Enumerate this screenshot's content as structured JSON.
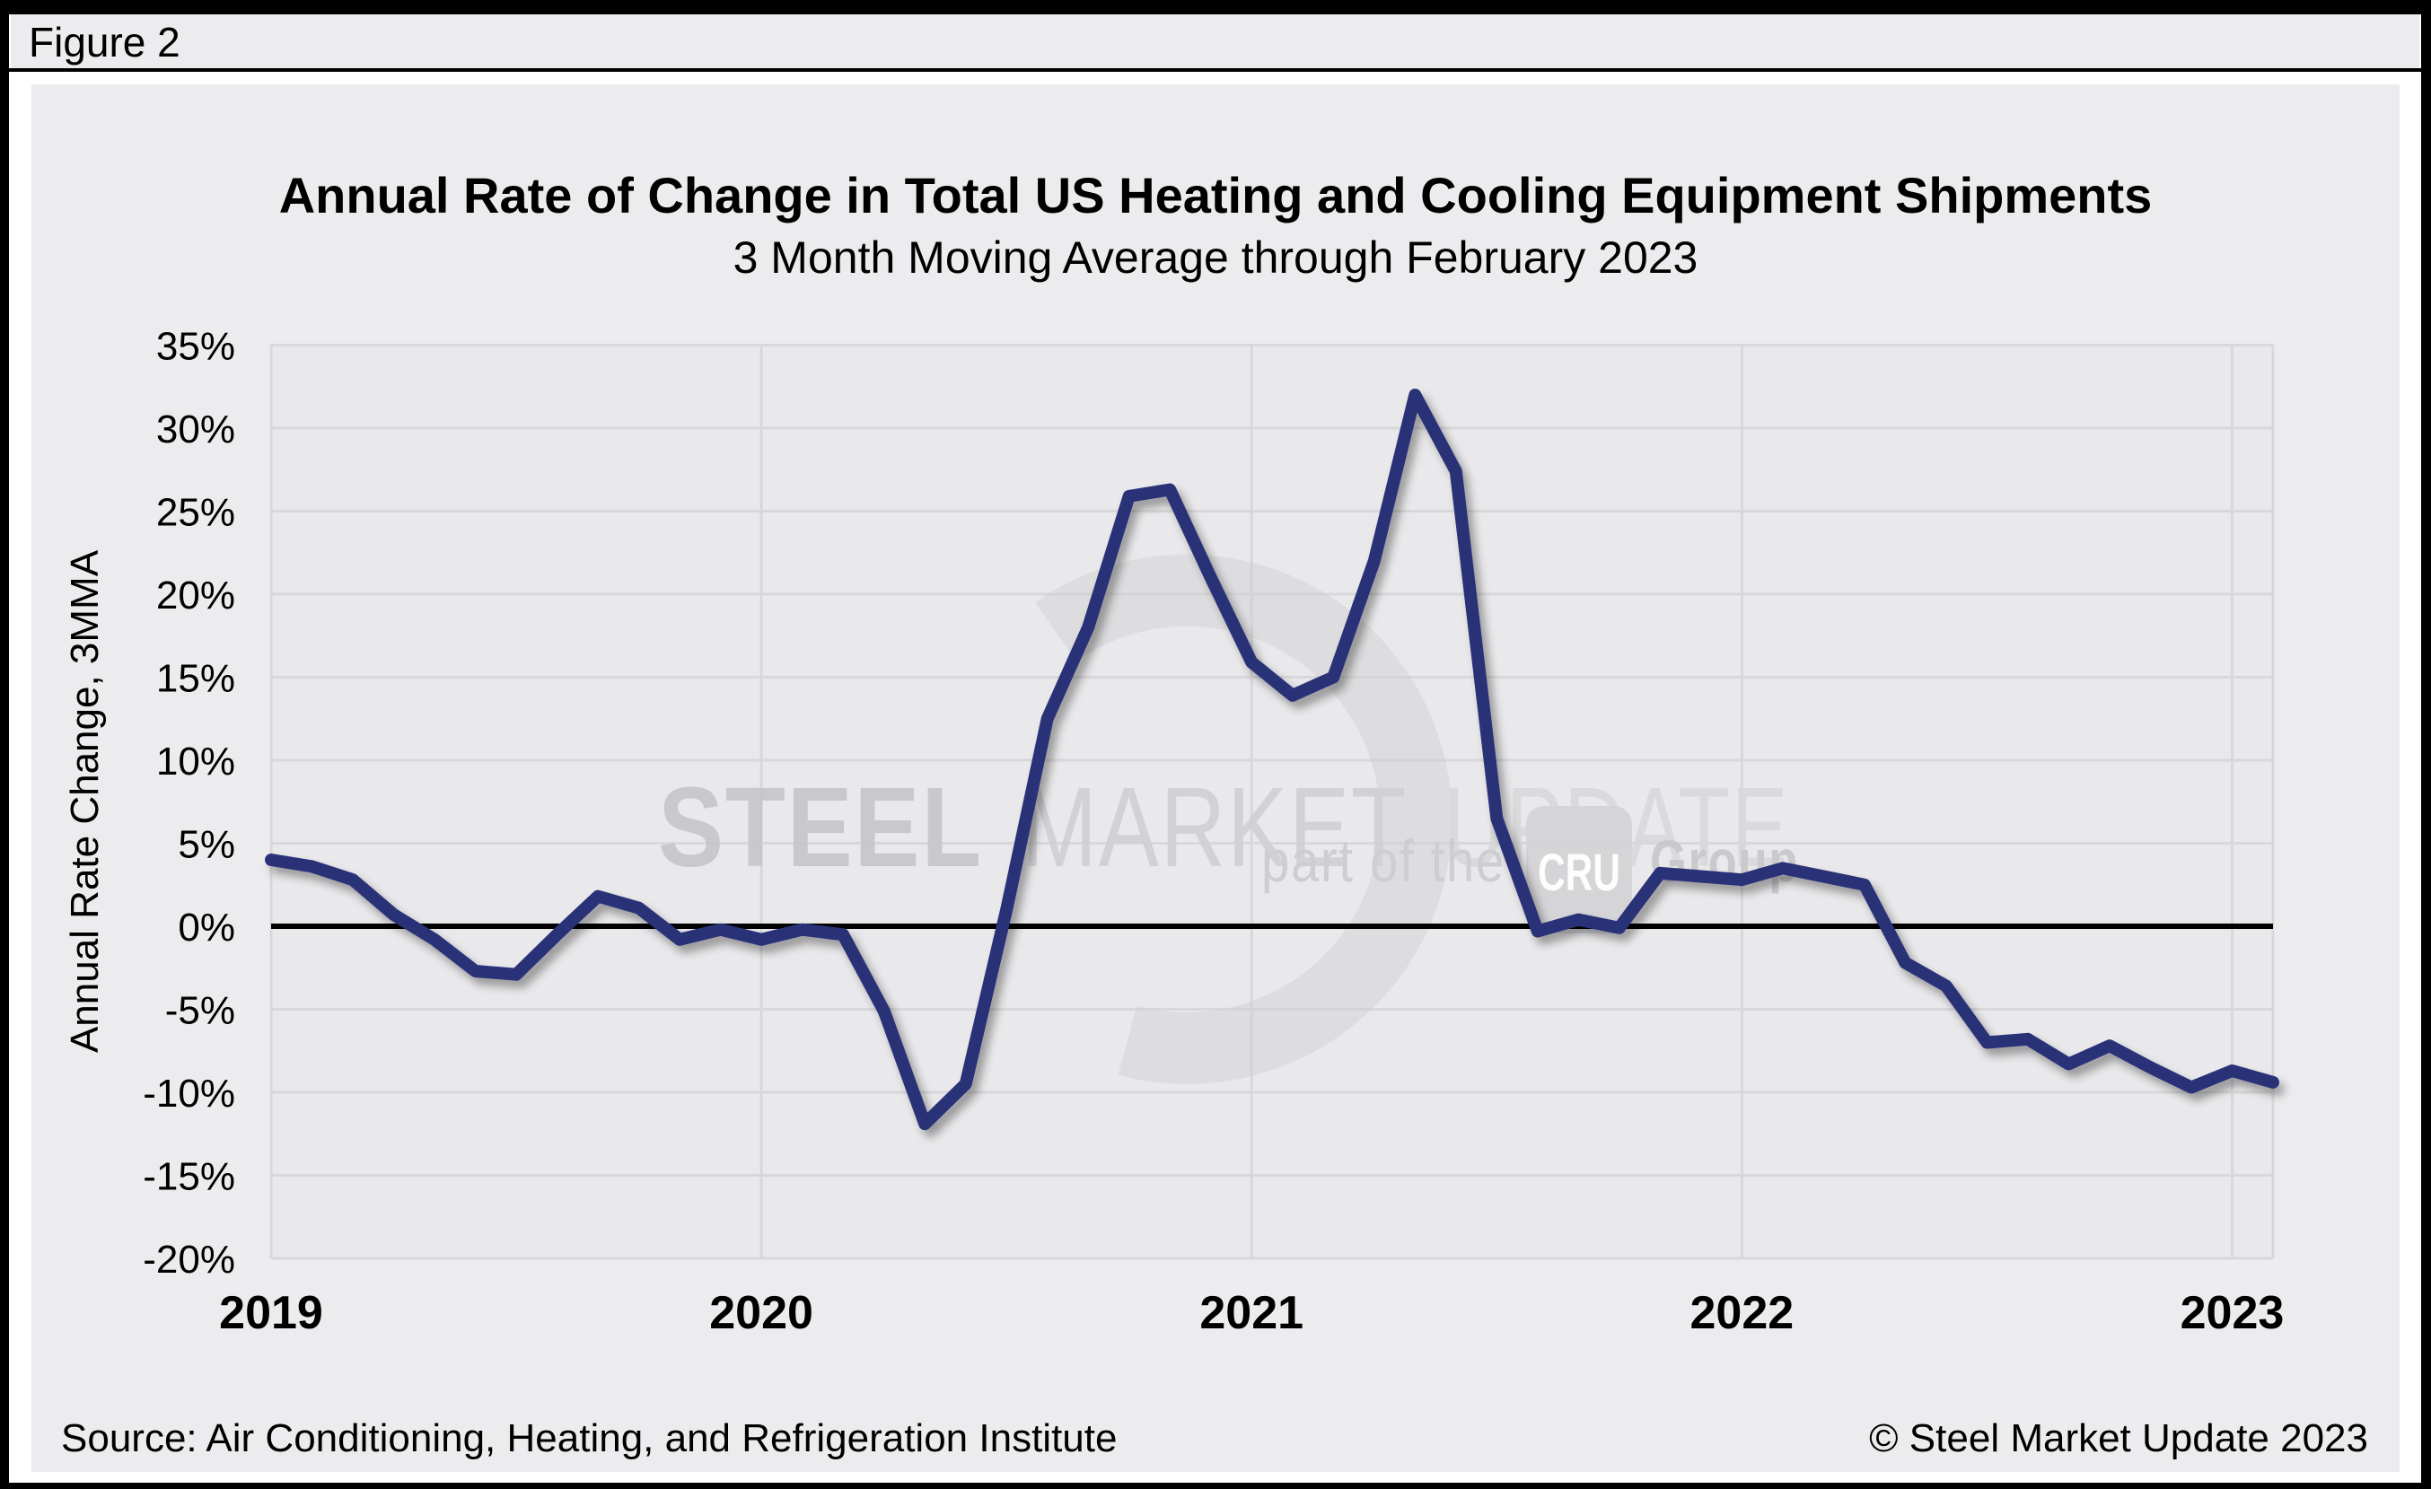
{
  "figure_label": "Figure 2",
  "chart": {
    "title": "Annual Rate of Change in Total US Heating and Cooling Equipment Shipments",
    "subtitle": "3 Month Moving Average through February 2023",
    "y_axis": {
      "label": "Annual Rate Change, 3MMA",
      "tick_labels": [
        "35%",
        "30%",
        "25%",
        "20%",
        "15%",
        "10%",
        "5%",
        "0%",
        "-5%",
        "-10%",
        "-15%",
        "-20%"
      ],
      "tick_values": [
        35,
        30,
        25,
        20,
        15,
        10,
        5,
        0,
        -5,
        -10,
        -15,
        -20
      ]
    },
    "x_axis": {
      "year_labels": [
        "2019",
        "2020",
        "2021",
        "2022",
        "2023"
      ],
      "year_month_index": [
        0,
        12,
        24,
        36,
        48
      ]
    }
  },
  "chart_data": {
    "type": "line",
    "title": "Annual Rate of Change in Total US Heating and Cooling Equipment Shipments",
    "subtitle": "3 Month Moving Average through February 2023",
    "xlabel": "",
    "ylabel": "Annual Rate Change, 3MMA",
    "ylim": [
      -20,
      35
    ],
    "grid": true,
    "legend_position": "none",
    "line_color": "#2b3277",
    "zero_line": true,
    "x": [
      "2019-01",
      "2019-02",
      "2019-03",
      "2019-04",
      "2019-05",
      "2019-06",
      "2019-07",
      "2019-08",
      "2019-09",
      "2019-10",
      "2019-11",
      "2019-12",
      "2020-01",
      "2020-02",
      "2020-03",
      "2020-04",
      "2020-05",
      "2020-06",
      "2020-07",
      "2020-08",
      "2020-09",
      "2020-10",
      "2020-11",
      "2020-12",
      "2021-01",
      "2021-02",
      "2021-03",
      "2021-04",
      "2021-05",
      "2021-06",
      "2021-07",
      "2021-08",
      "2021-09",
      "2021-10",
      "2021-11",
      "2021-12",
      "2022-01",
      "2022-02",
      "2022-03",
      "2022-04",
      "2022-05",
      "2022-06",
      "2022-07",
      "2022-08",
      "2022-09",
      "2022-10",
      "2022-11",
      "2022-12",
      "2023-01",
      "2023-02"
    ],
    "series": [
      {
        "name": "Annual rate of change, 3MMA",
        "values": [
          4.0,
          3.6,
          2.8,
          0.7,
          -0.8,
          -2.7,
          -2.9,
          -0.5,
          1.8,
          1.1,
          -0.8,
          -0.2,
          -0.8,
          -0.2,
          -0.5,
          -5.1,
          -11.9,
          -9.5,
          1.0,
          12.5,
          18.0,
          25.9,
          26.3,
          21.0,
          15.9,
          13.9,
          15.0,
          22.0,
          32.0,
          27.4,
          6.5,
          -0.3,
          0.4,
          -0.1,
          3.2,
          3.0,
          2.8,
          3.5,
          3.0,
          2.5,
          -2.2,
          -3.6,
          -7.0,
          -6.8,
          -8.3,
          -7.2,
          -8.5,
          -9.7,
          -8.7,
          -9.4
        ]
      }
    ]
  },
  "watermark": {
    "word1": "STEEL",
    "word2": "MARKET",
    "word3": "UPDATE",
    "tagline": "part of the",
    "cru": "CRU",
    "group": "Group"
  },
  "footer": {
    "source": "Source: Air Conditioning, Heating, and Refrigeration Institute",
    "copyright": "© Steel Market Update 2023"
  }
}
